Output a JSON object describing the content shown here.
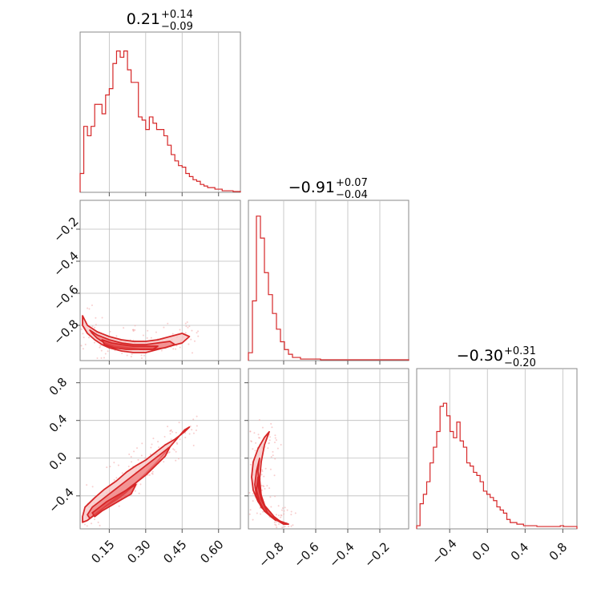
{
  "figure": {
    "type": "corner-plot",
    "color": "#d62728",
    "fill_light": "#f7c3c3",
    "fill_mid": "#ef7f7f"
  },
  "chart_data": [
    {
      "type": "histogram",
      "panel": "p0-0",
      "title": {
        "median": "0.21",
        "plus": "+0.14",
        "minus": "−0.09"
      },
      "xlim": [
        0.03,
        0.69
      ],
      "grid_x": [
        0.15,
        0.3,
        0.45,
        0.6
      ],
      "bins": [
        0.03,
        0.69
      ],
      "counts": [
        0.12,
        0.42,
        0.36,
        0.42,
        0.56,
        0.56,
        0.5,
        0.62,
        0.66,
        0.82,
        0.9,
        0.86,
        0.9,
        0.78,
        0.7,
        0.7,
        0.48,
        0.46,
        0.4,
        0.48,
        0.44,
        0.4,
        0.4,
        0.36,
        0.3,
        0.24,
        0.2,
        0.17,
        0.16,
        0.12,
        0.1,
        0.08,
        0.07,
        0.05,
        0.04,
        0.03,
        0.03,
        0.02,
        0.02,
        0.01,
        0.01,
        0.01,
        0.005,
        0.005
      ]
    },
    {
      "type": "histogram",
      "panel": "p1-1",
      "title": {
        "median": "−0.91",
        "plus": "+0.07",
        "minus": "−0.04"
      },
      "xlim": [
        -1.02,
        -0.02
      ],
      "grid_x": [
        -0.8,
        -0.6,
        -0.4,
        -0.2
      ],
      "bins": [
        -1.02,
        -0.02
      ],
      "counts": [
        0.05,
        0.38,
        0.92,
        0.78,
        0.56,
        0.42,
        0.3,
        0.2,
        0.12,
        0.07,
        0.04,
        0.02,
        0.02,
        0.01,
        0.01,
        0.01,
        0.01,
        0.01,
        0.005,
        0.005,
        0.005,
        0.005,
        0.005,
        0.005,
        0.005,
        0.005,
        0.005,
        0.005,
        0.005,
        0.005,
        0.005,
        0.005,
        0.005,
        0.005,
        0.005,
        0.005,
        0.005,
        0.005,
        0.005,
        0.005
      ]
    },
    {
      "type": "histogram",
      "panel": "p2-2",
      "title": {
        "median": "−0.30",
        "plus": "+0.31",
        "minus": "−0.20"
      },
      "xlim": [
        -0.75,
        0.95
      ],
      "grid_x": [
        -0.4,
        0.0,
        0.4,
        0.8
      ],
      "bins": [
        -0.75,
        0.95
      ],
      "counts": [
        0.02,
        0.16,
        0.22,
        0.3,
        0.42,
        0.52,
        0.62,
        0.78,
        0.8,
        0.72,
        0.62,
        0.58,
        0.68,
        0.56,
        0.52,
        0.42,
        0.4,
        0.36,
        0.34,
        0.3,
        0.24,
        0.22,
        0.2,
        0.18,
        0.14,
        0.12,
        0.1,
        0.06,
        0.04,
        0.04,
        0.03,
        0.03,
        0.02,
        0.02,
        0.02,
        0.02,
        0.015,
        0.015,
        0.015,
        0.015,
        0.015,
        0.015,
        0.015,
        0.02,
        0.015,
        0.015,
        0.015,
        0.015
      ]
    },
    {
      "type": "scatter",
      "panel": "p1-0",
      "xlim": [
        0.03,
        0.69
      ],
      "ylim": [
        -1.02,
        -0.02
      ],
      "grid_x": [
        0.15,
        0.3,
        0.45,
        0.6
      ],
      "grid_y": [
        -0.2,
        -0.4,
        -0.6,
        -0.8
      ],
      "contours": [
        {
          "level": "outer",
          "fill": "#f7c3c3",
          "x": [
            0.04,
            0.06,
            0.1,
            0.15,
            0.2,
            0.25,
            0.3,
            0.35,
            0.4,
            0.45,
            0.48,
            0.45,
            0.4,
            0.35,
            0.3,
            0.25,
            0.2,
            0.15,
            0.12,
            0.09,
            0.06,
            0.04
          ],
          "y": [
            -0.74,
            -0.8,
            -0.84,
            -0.87,
            -0.89,
            -0.9,
            -0.9,
            -0.89,
            -0.87,
            -0.85,
            -0.87,
            -0.91,
            -0.93,
            -0.95,
            -0.97,
            -0.97,
            -0.96,
            -0.94,
            -0.92,
            -0.89,
            -0.85,
            -0.8
          ]
        },
        {
          "level": "middle",
          "fill": "#ef7f7f",
          "x": [
            0.07,
            0.1,
            0.15,
            0.2,
            0.25,
            0.3,
            0.35,
            0.4,
            0.42,
            0.38,
            0.33,
            0.28,
            0.22,
            0.17,
            0.13,
            0.1,
            0.08
          ],
          "y": [
            -0.83,
            -0.86,
            -0.89,
            -0.91,
            -0.92,
            -0.92,
            -0.91,
            -0.9,
            -0.92,
            -0.94,
            -0.95,
            -0.95,
            -0.94,
            -0.93,
            -0.91,
            -0.88,
            -0.85
          ]
        },
        {
          "level": "inner",
          "fill": "#e34a4a",
          "x": [
            0.12,
            0.16,
            0.2,
            0.25,
            0.3,
            0.35,
            0.33,
            0.28,
            0.22,
            0.17,
            0.13
          ],
          "y": [
            -0.89,
            -0.91,
            -0.92,
            -0.93,
            -0.93,
            -0.93,
            -0.95,
            -0.95,
            -0.95,
            -0.94,
            -0.92
          ]
        }
      ]
    },
    {
      "type": "scatter",
      "panel": "p2-0",
      "xlim": [
        0.03,
        0.69
      ],
      "ylim": [
        -0.75,
        0.95
      ],
      "grid_x": [
        0.15,
        0.3,
        0.45,
        0.6
      ],
      "grid_y": [
        0.8,
        0.4,
        0.0,
        -0.4
      ],
      "contours": [
        {
          "level": "outer",
          "fill": "#f7c3c3",
          "x": [
            0.04,
            0.05,
            0.09,
            0.13,
            0.18,
            0.22,
            0.26,
            0.3,
            0.34,
            0.38,
            0.42,
            0.46,
            0.48,
            0.46,
            0.42,
            0.38,
            0.34,
            0.3,
            0.26,
            0.22,
            0.18,
            0.13,
            0.09,
            0.06,
            0.04
          ],
          "y": [
            -0.62,
            -0.52,
            -0.42,
            -0.33,
            -0.24,
            -0.15,
            -0.08,
            -0.02,
            0.06,
            0.14,
            0.2,
            0.28,
            0.33,
            0.3,
            0.18,
            0.06,
            -0.06,
            -0.16,
            -0.26,
            -0.36,
            -0.44,
            -0.52,
            -0.6,
            -0.66,
            -0.68
          ]
        },
        {
          "level": "middle",
          "fill": "#ef7f7f",
          "x": [
            0.06,
            0.08,
            0.12,
            0.16,
            0.2,
            0.24,
            0.28,
            0.32,
            0.36,
            0.4,
            0.38,
            0.34,
            0.3,
            0.26,
            0.22,
            0.18,
            0.14,
            0.1,
            0.07
          ],
          "y": [
            -0.6,
            -0.52,
            -0.44,
            -0.36,
            -0.28,
            -0.2,
            -0.12,
            -0.04,
            0.04,
            0.12,
            0.02,
            -0.08,
            -0.18,
            -0.26,
            -0.34,
            -0.42,
            -0.5,
            -0.58,
            -0.64
          ]
        },
        {
          "level": "inner",
          "fill": "#e34a4a",
          "x": [
            0.08,
            0.11,
            0.14,
            0.18,
            0.22,
            0.26,
            0.24,
            0.2,
            0.16,
            0.12,
            0.09
          ],
          "y": [
            -0.58,
            -0.52,
            -0.46,
            -0.4,
            -0.34,
            -0.28,
            -0.38,
            -0.44,
            -0.5,
            -0.56,
            -0.62
          ]
        }
      ]
    },
    {
      "type": "scatter",
      "panel": "p2-1",
      "xlim": [
        -1.02,
        -0.02
      ],
      "ylim": [
        -0.75,
        0.95
      ],
      "grid_x": [
        -0.8,
        -0.6,
        -0.4,
        -0.2
      ],
      "grid_y": [
        0.8,
        0.4,
        0.0,
        -0.4
      ],
      "contours": [
        {
          "level": "outer",
          "fill": "#f7c3c3",
          "x": [
            -0.89,
            -0.92,
            -0.96,
            -0.99,
            -1.0,
            -0.99,
            -0.96,
            -0.92,
            -0.87,
            -0.82,
            -0.77,
            -0.8,
            -0.86,
            -0.91,
            -0.94,
            -0.95,
            -0.94,
            -0.92
          ],
          "y": [
            0.28,
            0.22,
            0.1,
            -0.04,
            -0.2,
            -0.34,
            -0.46,
            -0.56,
            -0.63,
            -0.67,
            -0.7,
            -0.7,
            -0.64,
            -0.54,
            -0.4,
            -0.22,
            -0.04,
            0.14
          ]
        },
        {
          "level": "middle",
          "fill": "#ef7f7f",
          "x": [
            -0.95,
            -0.97,
            -0.98,
            -0.97,
            -0.94,
            -0.89,
            -0.84,
            -0.8,
            -0.86,
            -0.92,
            -0.95,
            -0.96
          ],
          "y": [
            0.0,
            -0.14,
            -0.28,
            -0.4,
            -0.52,
            -0.6,
            -0.66,
            -0.7,
            -0.62,
            -0.5,
            -0.34,
            -0.14
          ]
        },
        {
          "level": "inner",
          "fill": "#e34a4a",
          "x": [
            -0.96,
            -0.97,
            -0.95,
            -0.92,
            -0.88,
            -0.85,
            -0.9,
            -0.94,
            -0.96
          ],
          "y": [
            -0.2,
            -0.34,
            -0.46,
            -0.56,
            -0.62,
            -0.66,
            -0.58,
            -0.44,
            -0.28
          ]
        }
      ]
    }
  ],
  "axes": {
    "p1-0": {
      "ytick_labels": [
        "−0.2",
        "−0.4",
        "−0.6",
        "−0.8"
      ]
    },
    "p2-0": {
      "ytick_labels": [
        "0.8",
        "0.4",
        "0.0",
        "−0.4"
      ],
      "xtick_labels": [
        "0.15",
        "0.30",
        "0.45",
        "0.60"
      ]
    },
    "p2-1": {
      "xtick_labels": [
        "−0.8",
        "−0.6",
        "−0.4",
        "−0.2"
      ]
    },
    "p2-2": {
      "xtick_labels": [
        "−0.4",
        "0.0",
        "0.4",
        "0.8"
      ]
    }
  }
}
